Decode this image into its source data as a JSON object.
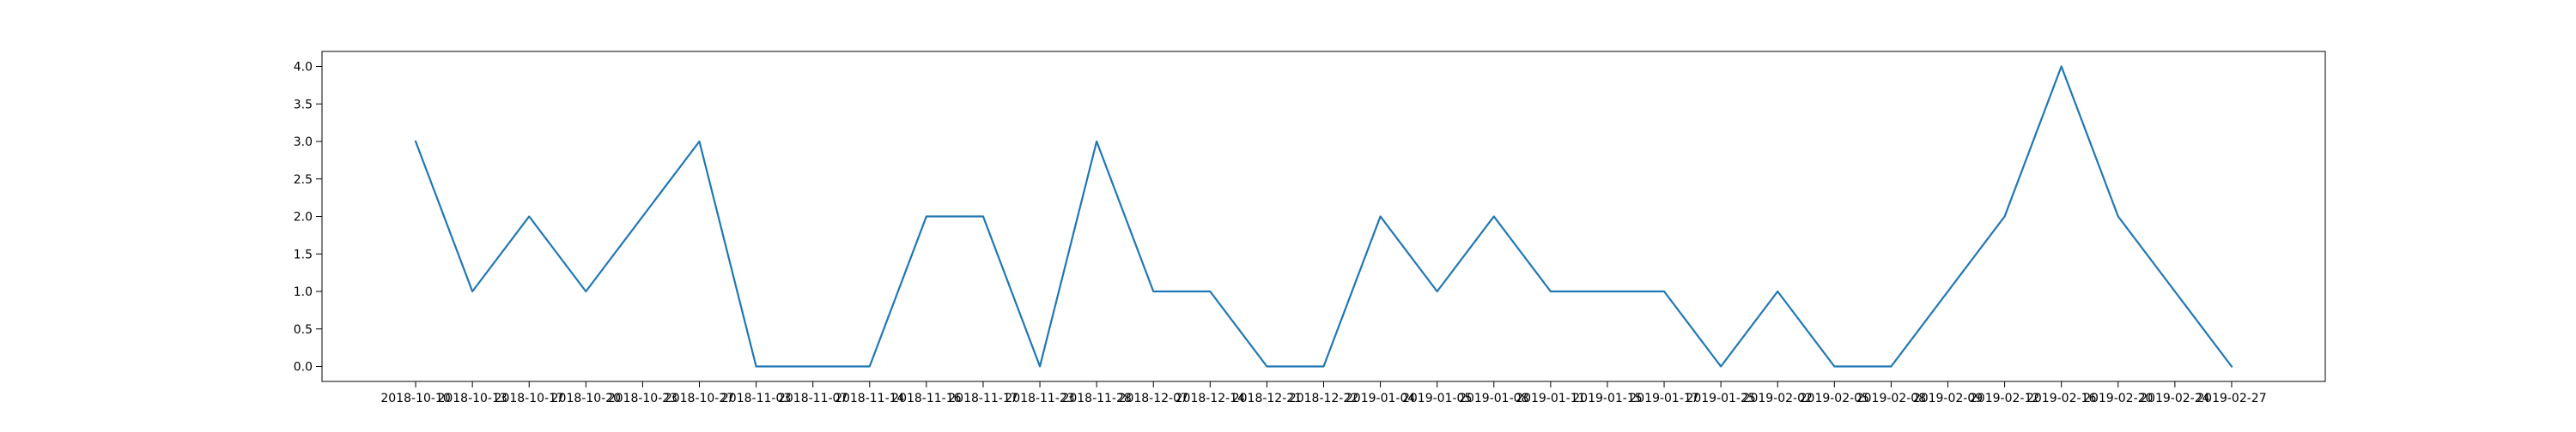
{
  "chart_data": {
    "type": "line",
    "title": "",
    "xlabel": "",
    "ylabel": "",
    "x": [
      "2018-10-10",
      "2018-10-13",
      "2018-10-17",
      "2018-10-20",
      "2018-10-23",
      "2018-10-27",
      "2018-11-03",
      "2018-11-07",
      "2018-11-14",
      "2018-11-16",
      "2018-11-17",
      "2018-11-23",
      "2018-11-28",
      "2018-12-07",
      "2018-12-14",
      "2018-12-21",
      "2018-12-22",
      "2019-01-04",
      "2019-01-05",
      "2019-01-08",
      "2019-01-11",
      "2019-01-15",
      "2019-01-17",
      "2019-01-25",
      "2019-02-02",
      "2019-02-05",
      "2019-02-08",
      "2019-02-09",
      "2019-02-12",
      "2019-02-16",
      "2019-02-20",
      "2019-02-24",
      "2019-02-27"
    ],
    "series": [
      {
        "values": [
          3,
          1,
          2,
          1,
          2,
          3,
          0,
          0,
          0,
          2,
          2,
          0,
          3,
          1,
          1,
          0,
          0,
          2,
          1,
          2,
          1,
          1,
          1,
          0,
          1,
          0,
          0,
          1,
          2,
          4,
          2,
          1,
          0
        ],
        "color": "#1f77b4"
      }
    ],
    "yticks": [
      "0.0",
      "0.5",
      "1.0",
      "1.5",
      "2.0",
      "2.5",
      "3.0",
      "3.5",
      "4.0"
    ],
    "ylim": [
      -0.2,
      4.2
    ],
    "grid": false,
    "legend": "none"
  }
}
